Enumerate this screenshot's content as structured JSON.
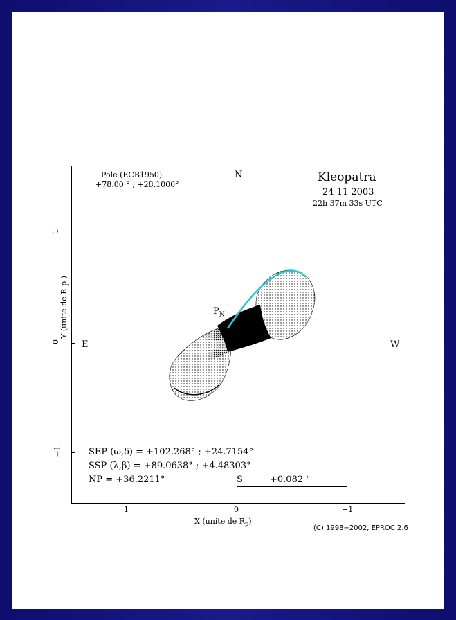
{
  "plot": {
    "title": "Kleopatra",
    "date": "24 11 2003",
    "time": "22h 37m 33s UTC",
    "pole_label": "Pole (ECB1950)",
    "pole_values": "+78.00  °  ; +28.1000°",
    "north": "N",
    "east": "E",
    "west": "W",
    "pole_marker": "P",
    "pole_marker_sub": "N",
    "x_axis_label": "X (unite de R",
    "x_axis_sub": "p",
    "x_axis_close": ")",
    "y_axis_label": "Y (unite de R  p )",
    "x_ticks": [
      "1",
      "0",
      "−1"
    ],
    "y_ticks": [
      "1",
      "0",
      "−1"
    ],
    "sep_line": "SEP (ω,δ) = +102.268°  ; +24.7154°",
    "ssp_line": "SSP (λ,β) = +89.0638°  ; +4.48303°",
    "np_line": "NP          = +36.2211°",
    "scale_label": "S",
    "scale_value": "+0.082 \"",
    "credit": "(C) 1998−2002, EPROC 2.6"
  },
  "colors": {
    "background": "#12127c",
    "slide": "#ffffff",
    "limb_highlight": "#2ec4d6"
  }
}
